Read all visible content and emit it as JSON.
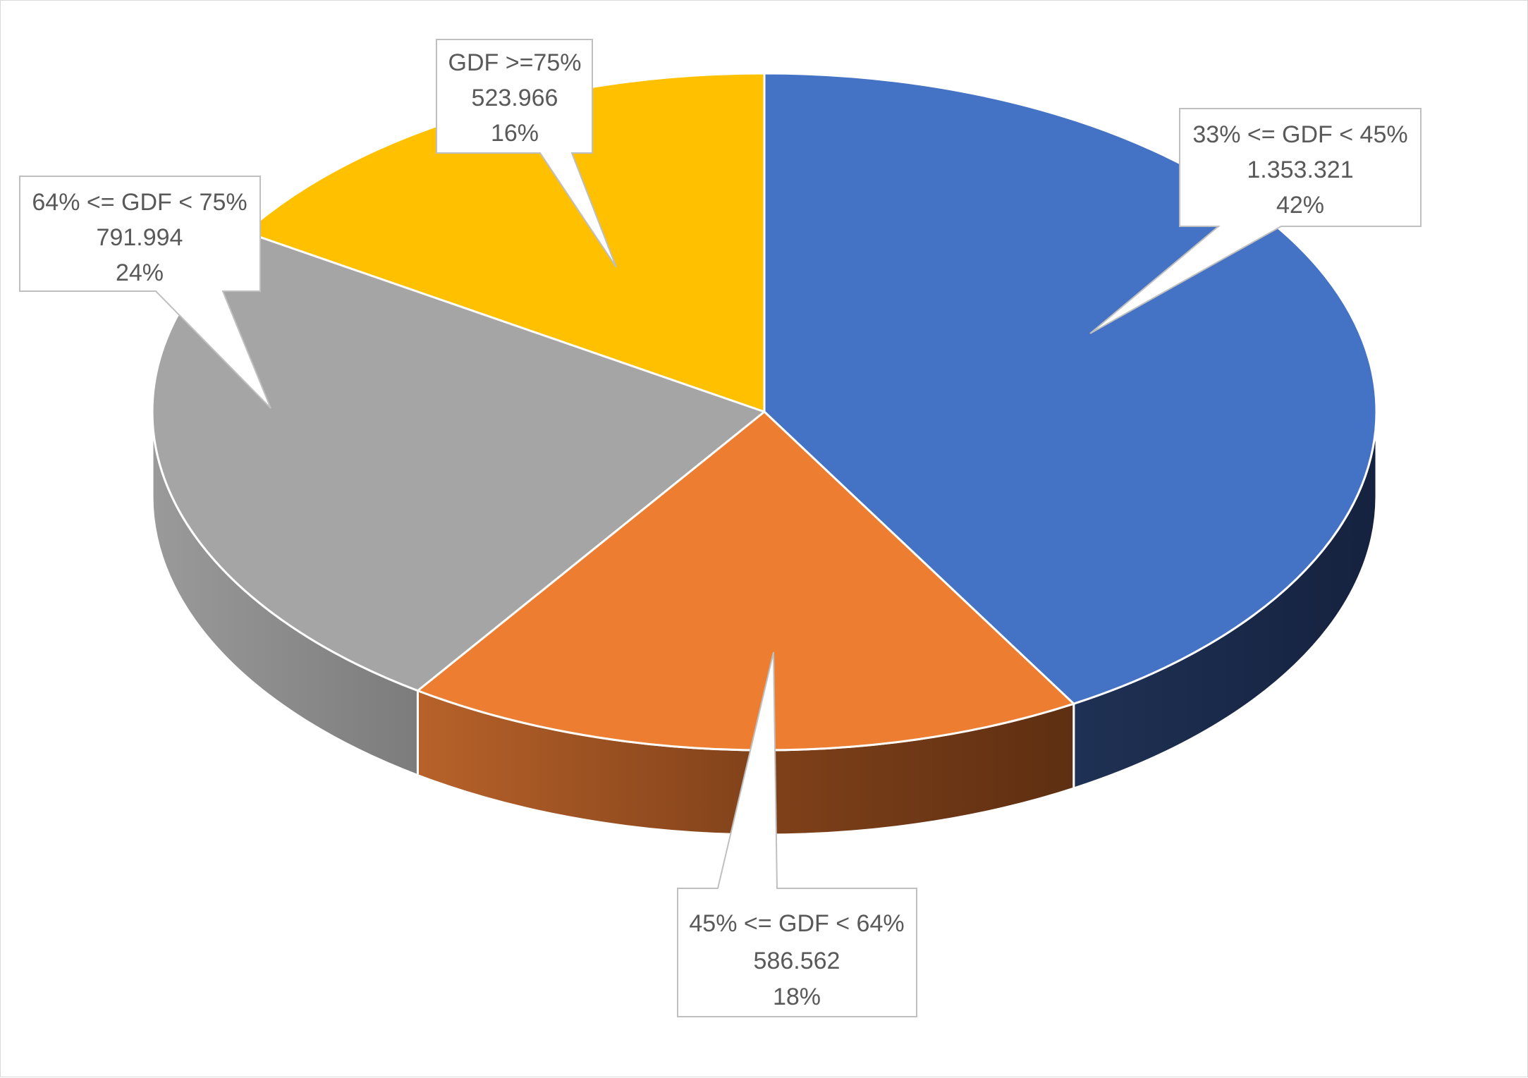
{
  "chart_data": {
    "type": "pie",
    "style": "3d",
    "legend": "none",
    "slices": [
      {
        "label": "33% <= GDF < 45%",
        "value_text": "1.353.321",
        "value": 1353321,
        "percent_text": "42%",
        "color": "#4472C4",
        "side_color": "#1B2A4D"
      },
      {
        "label": "45% <= GDF < 64%",
        "value_text": "586.562",
        "value": 586562,
        "percent_text": "18%",
        "color": "#ED7D31",
        "side_color": "#7A3E15"
      },
      {
        "label": "64% <= GDF < 75%",
        "value_text": "791.994",
        "value": 791994,
        "percent_text": "24%",
        "color": "#A5A5A5",
        "side_color": "#8C8C8C"
      },
      {
        "label": "GDF >=75%",
        "value_text": "523.966",
        "value": 523966,
        "percent_text": "16%",
        "color": "#FFC000",
        "side_color": "#9C7600"
      }
    ]
  }
}
